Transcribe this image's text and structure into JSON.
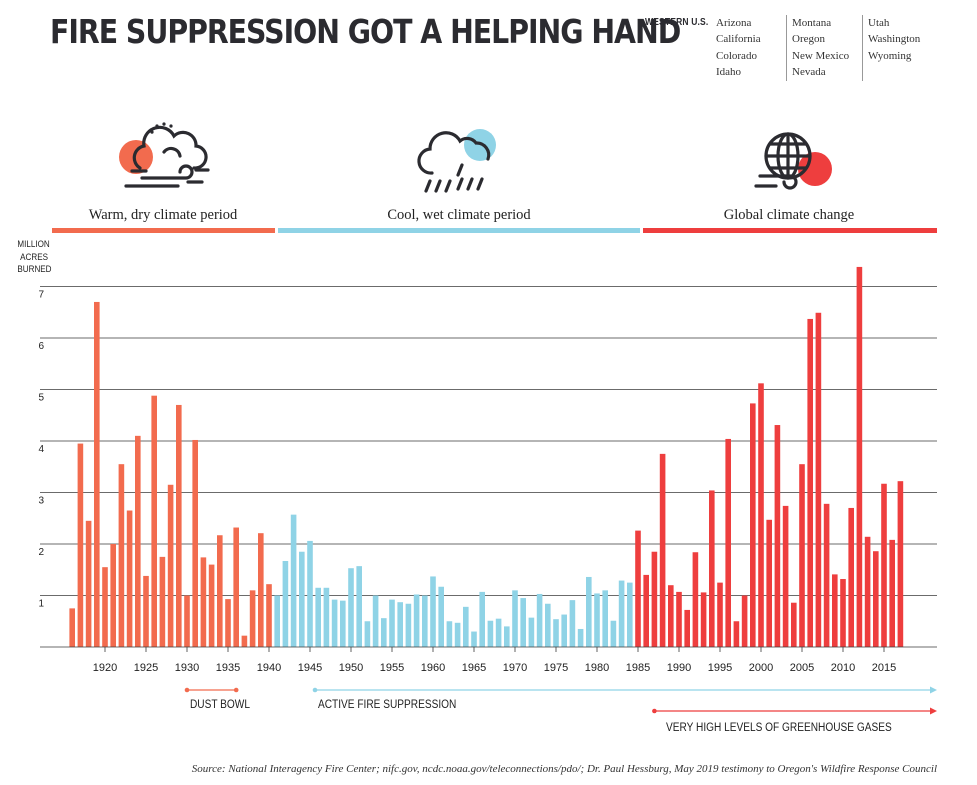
{
  "header": {
    "title": "FIRE SUPPRESSION GOT A HELPING HAND",
    "states_label": "WESTERN U.S.",
    "states_columns": [
      [
        "Arizona",
        "California",
        "Colorado",
        "Idaho"
      ],
      [
        "Montana",
        "Oregon",
        "New Mexico",
        "Nevada"
      ],
      [
        "Utah",
        "Washington",
        "Wyoming"
      ]
    ]
  },
  "periods": [
    {
      "label": "Warm, dry climate period",
      "color": "#f26b4e",
      "start_year": 1915,
      "end_year": 1940,
      "icon": "hot-windy-cloud-sun-icon"
    },
    {
      "label": "Cool, wet climate period",
      "color": "#8fd3e6",
      "start_year": 1941,
      "end_year": 1984,
      "icon": "rain-cloud-sun-icon"
    },
    {
      "label": "Global climate change",
      "color": "#ee3e3e",
      "start_year": 1985,
      "end_year": 2021,
      "icon": "globe-sun-wind-icon"
    }
  ],
  "chart_data": {
    "type": "bar",
    "ylabel": "MILLION ACRES BURNED",
    "ylim": [
      0,
      7.5
    ],
    "yticks": [
      1,
      2,
      3,
      4,
      5,
      6,
      7
    ],
    "xtick_years": [
      1920,
      1925,
      1930,
      1935,
      1940,
      1945,
      1950,
      1955,
      1960,
      1965,
      1970,
      1975,
      1980,
      1985,
      1990,
      1995,
      2000,
      2005,
      2010,
      2015
    ],
    "grid": true,
    "series": [
      {
        "name": "Warm, dry climate period",
        "color": "#f26b4e",
        "x": [
          1916,
          1917,
          1918,
          1919,
          1920,
          1921,
          1922,
          1923,
          1924,
          1925,
          1926,
          1927,
          1928,
          1929,
          1930,
          1931,
          1932,
          1933,
          1934,
          1935,
          1936,
          1937,
          1938,
          1939,
          1940
        ],
        "values": [
          0.75,
          3.95,
          2.45,
          6.7,
          1.55,
          2.0,
          3.55,
          2.65,
          4.1,
          1.38,
          4.88,
          1.75,
          3.15,
          4.7,
          1.0,
          4.02,
          1.74,
          1.6,
          2.17,
          0.93,
          2.32,
          0.22,
          1.1,
          2.21,
          1.22
        ]
      },
      {
        "name": "Cool, wet climate period",
        "color": "#8fd3e6",
        "x": [
          1941,
          1942,
          1943,
          1944,
          1945,
          1946,
          1947,
          1948,
          1949,
          1950,
          1951,
          1952,
          1953,
          1954,
          1955,
          1956,
          1957,
          1958,
          1959,
          1960,
          1961,
          1962,
          1963,
          1964,
          1965,
          1966,
          1967,
          1968,
          1969,
          1970,
          1971,
          1972,
          1973,
          1974,
          1975,
          1976,
          1977,
          1978,
          1979,
          1980,
          1981,
          1982,
          1983,
          1984
        ],
        "values": [
          1.0,
          1.67,
          2.57,
          1.85,
          2.06,
          1.15,
          1.15,
          0.92,
          0.9,
          1.53,
          1.57,
          0.5,
          1.0,
          0.56,
          0.92,
          0.87,
          0.84,
          1.02,
          1.0,
          1.37,
          1.17,
          0.5,
          0.47,
          0.78,
          0.3,
          1.07,
          0.51,
          0.55,
          0.4,
          1.1,
          0.95,
          0.57,
          1.03,
          0.84,
          0.54,
          0.63,
          0.91,
          0.35,
          1.36,
          1.04,
          1.1,
          0.51,
          1.29,
          1.25
        ]
      },
      {
        "name": "Global climate change",
        "color": "#ee3e3e",
        "x": [
          1985,
          1986,
          1987,
          1988,
          1989,
          1990,
          1991,
          1992,
          1993,
          1994,
          1995,
          1996,
          1997,
          1998,
          1999,
          2000,
          2001,
          2002,
          2003,
          2004,
          2005,
          2006,
          2007,
          2008,
          2009,
          2010,
          2011,
          2012,
          2013,
          2014,
          2015,
          2016,
          2017
        ],
        "values": [
          2.26,
          1.4,
          1.85,
          3.75,
          1.2,
          1.07,
          0.72,
          1.84,
          1.06,
          3.04,
          1.25,
          4.04,
          0.5,
          1.0,
          4.73,
          5.12,
          2.47,
          4.31,
          2.74,
          0.86,
          3.55,
          6.37,
          6.49,
          2.78,
          1.41,
          1.32,
          2.7,
          7.38,
          2.14,
          1.86,
          3.17,
          2.08,
          3.22
        ]
      }
    ]
  },
  "annotations": [
    {
      "label": "DUST BOWL",
      "start_year": 1930,
      "end_year": 1936,
      "color": "#f26b4e",
      "arrow": false
    },
    {
      "label": "ACTIVE FIRE SUPPRESSION",
      "start_year": 1945,
      "end_year": 2021,
      "color": "#8fd3e6",
      "arrow": true
    },
    {
      "label": "VERY HIGH LEVELS OF GREENHOUSE GASES",
      "start_year": 1987,
      "end_year": 2021,
      "color": "#ee3e3e",
      "arrow": true
    }
  ],
  "source": "Source: National Interagency Fire Center; nifc.gov, ncdc.noaa.gov/teleconnections/pdo/; Dr. Paul Hessburg, May 2019 testimony to Oregon's Wildfire Response Council"
}
